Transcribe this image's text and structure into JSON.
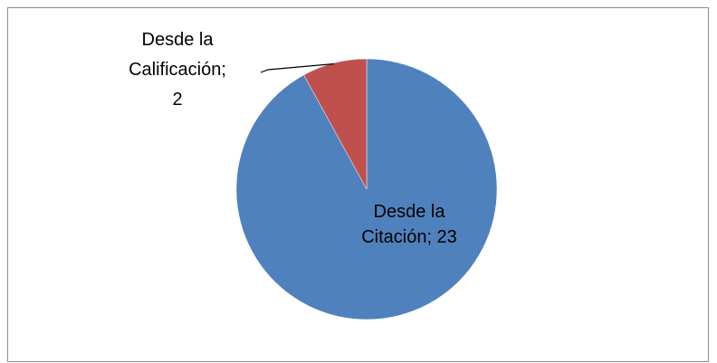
{
  "chart_data": {
    "type": "pie",
    "title": "",
    "slices": [
      {
        "name": "Desde la Citación",
        "value": 23,
        "color": "#4F81BD",
        "label_lines": [
          "Desde la",
          "Citación; 23"
        ]
      },
      {
        "name": "Desde la Calificación",
        "value": 2,
        "color": "#C0504D",
        "label_lines": [
          "Desde la",
          "Calificación;",
          "2"
        ]
      }
    ],
    "legend": "none"
  }
}
